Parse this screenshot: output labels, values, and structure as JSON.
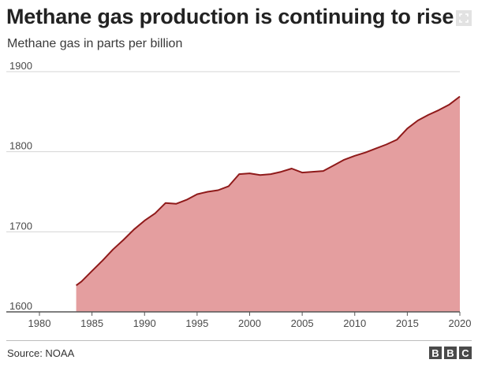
{
  "header": {
    "title": "Methane gas production is continuing to rise",
    "expand_icon": "expand-icon"
  },
  "chart_data": {
    "type": "area",
    "title": "Methane gas production is continuing to rise",
    "subtitle": "Methane gas in parts per billion",
    "xlabel": "",
    "ylabel": "",
    "xlim": [
      1980,
      2020
    ],
    "ylim": [
      1600,
      1900
    ],
    "xticks": [
      "1980",
      "1985",
      "1990",
      "1995",
      "2000",
      "2005",
      "2010",
      "2015",
      "2020"
    ],
    "yticks": [
      "1900",
      "1800",
      "1700",
      "1600"
    ],
    "grid": true,
    "fill_color": "#e49e9f",
    "line_color": "#8f1a1a",
    "x": [
      1983.5,
      1984,
      1985,
      1986,
      1987,
      1988,
      1989,
      1990,
      1991,
      1992,
      1993,
      1994,
      1995,
      1996,
      1997,
      1998,
      1999,
      2000,
      2001,
      2002,
      2003,
      2004,
      2005,
      2006,
      2007,
      2008,
      2009,
      2010,
      2011,
      2012,
      2013,
      2014,
      2015,
      2016,
      2017,
      2018,
      2019,
      2020
    ],
    "values": [
      1633,
      1638,
      1651,
      1664,
      1678,
      1690,
      1703,
      1714,
      1723,
      1736,
      1735,
      1740,
      1747,
      1750,
      1752,
      1757,
      1772,
      1773,
      1771,
      1772,
      1775,
      1779,
      1774,
      1775,
      1776,
      1783,
      1790,
      1795,
      1799,
      1804,
      1809,
      1815,
      1829,
      1839,
      1846,
      1852,
      1859,
      1869
    ]
  },
  "footer": {
    "source": "Source: NOAA",
    "logo_letters": [
      "B",
      "B",
      "C"
    ]
  }
}
